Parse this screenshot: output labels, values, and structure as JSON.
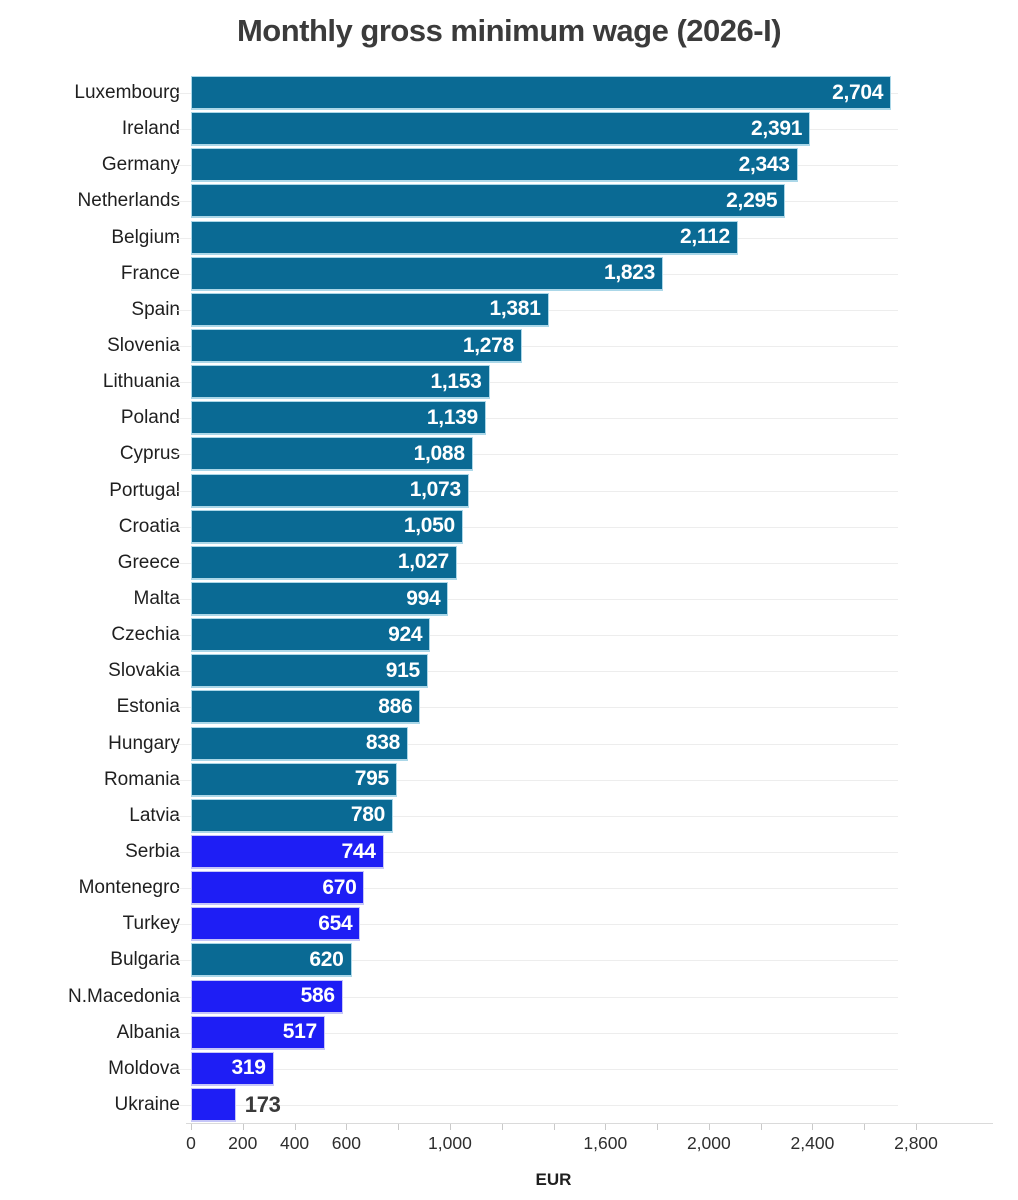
{
  "title": "Monthly gross minimum wage (2026-I)",
  "colors": {
    "background": "#ffffff",
    "title": "#3b3b3b",
    "bar_teal": "#0a6a94",
    "bar_teal_edge": "#abd7e8",
    "bar_blue": "#1e1ef5",
    "bar_blue_edge": "#c6c6f8",
    "value_label_inside": "#ffffff",
    "value_label_outside": "#3a3a3a",
    "gridline": "#ededed",
    "axis_line": "#dadada",
    "tick": "#c9c9c9",
    "tick_label": "#2e2e2e",
    "category_label": "#1f1f1f"
  },
  "chart_data": {
    "type": "bar",
    "orientation": "horizontal",
    "title": "Monthly gross minimum wage (2026-I)",
    "xlabel": "EUR",
    "xlim": [
      0,
      2800
    ],
    "grid": "per-category horizontal gridlines, light gray",
    "legend": "none",
    "x_ticks": {
      "minor_step": 200,
      "labeled_values": [
        0,
        200,
        400,
        600,
        1000,
        1600,
        2000,
        2400,
        2800
      ],
      "labels": [
        "0",
        "200",
        "400",
        "600",
        "1,000",
        "1,600",
        "2,000",
        "2,400",
        "2,800"
      ]
    },
    "categories": [
      "Luxembourg",
      "Ireland",
      "Germany",
      "Netherlands",
      "Belgium",
      "France",
      "Spain",
      "Slovenia",
      "Lithuania",
      "Poland",
      "Cyprus",
      "Portugal",
      "Croatia",
      "Greece",
      "Malta",
      "Czechia",
      "Slovakia",
      "Estonia",
      "Hungary",
      "Romania",
      "Latvia",
      "Serbia",
      "Montenegro",
      "Turkey",
      "Bulgaria",
      "N.Macedonia",
      "Albania",
      "Moldova",
      "Ukraine"
    ],
    "values": [
      2704,
      2391,
      2343,
      2295,
      2112,
      1823,
      1381,
      1278,
      1153,
      1139,
      1088,
      1073,
      1050,
      1027,
      994,
      924,
      915,
      886,
      838,
      795,
      780,
      744,
      670,
      654,
      620,
      586,
      517,
      319,
      173
    ],
    "value_labels": [
      "2,704",
      "2,391",
      "2,343",
      "2,295",
      "2,112",
      "1,823",
      "1,381",
      "1,278",
      "1,153",
      "1,139",
      "1,088",
      "1,073",
      "1,050",
      "1,027",
      "994",
      "924",
      "915",
      "886",
      "838",
      "795",
      "780",
      "744",
      "670",
      "654",
      "620",
      "586",
      "517",
      "319",
      "173"
    ],
    "color_groups": [
      "teal",
      "teal",
      "teal",
      "teal",
      "teal",
      "teal",
      "teal",
      "teal",
      "teal",
      "teal",
      "teal",
      "teal",
      "teal",
      "teal",
      "teal",
      "teal",
      "teal",
      "teal",
      "teal",
      "teal",
      "teal",
      "blue",
      "blue",
      "blue",
      "teal",
      "blue",
      "blue",
      "blue",
      "blue"
    ],
    "value_label_positions": [
      "inside",
      "inside",
      "inside",
      "inside",
      "inside",
      "inside",
      "inside",
      "inside",
      "inside",
      "inside",
      "inside",
      "inside",
      "inside",
      "inside",
      "inside",
      "inside",
      "inside",
      "inside",
      "inside",
      "inside",
      "inside",
      "inside",
      "inside",
      "inside",
      "inside",
      "inside",
      "inside",
      "inside",
      "outside"
    ]
  }
}
